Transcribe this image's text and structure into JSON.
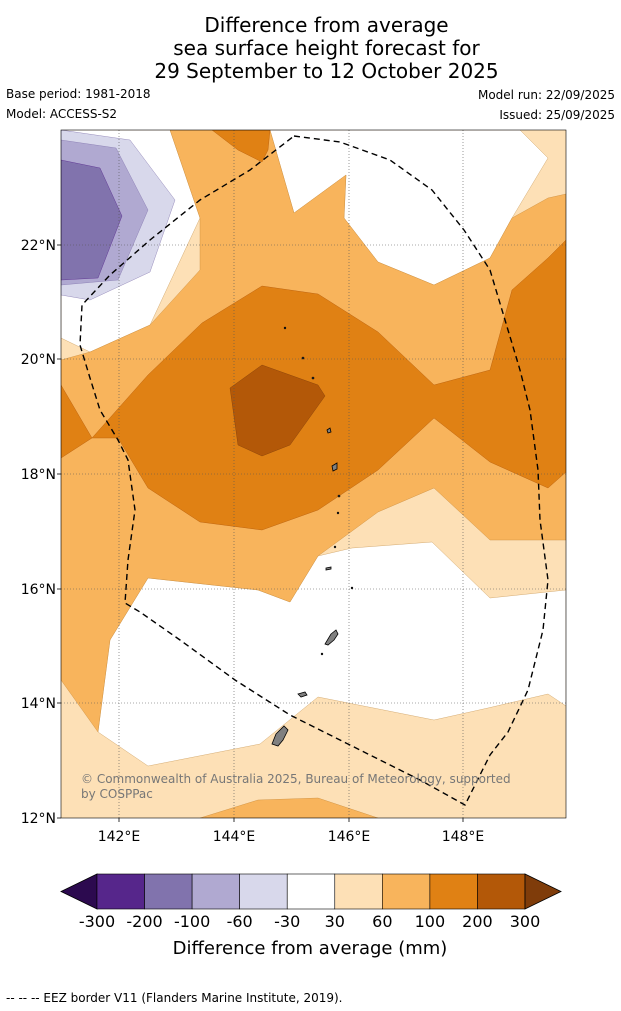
{
  "title": {
    "line1": "Difference from average",
    "line2": "sea surface height forecast for",
    "line3": "29 September to 12 October 2025"
  },
  "meta": {
    "base_period": "Base period: 1981-2018",
    "model": "Model: ACCESS-S2",
    "model_run": "Model run: 22/09/2025",
    "issued": "Issued: 25/09/2025"
  },
  "map": {
    "lon_range": [
      141,
      149.8
    ],
    "lat_range": [
      12,
      24
    ],
    "lon_ticks": [
      "142°E",
      "144°E",
      "146°E",
      "148°E"
    ],
    "lat_ticks": [
      "12°N",
      "14°N",
      "16°N",
      "18°N",
      "20°N",
      "22°N"
    ],
    "features": [
      "sea surface height anomaly contours",
      "EEZ border (dashed)",
      "islands"
    ]
  },
  "colorbar": {
    "boundaries": [
      "-300",
      "-200",
      "-100",
      "-60",
      "-30",
      "30",
      "60",
      "100",
      "200",
      "300"
    ],
    "colors": [
      "#2c0a4f",
      "#56268b",
      "#8173ad",
      "#b0a9d1",
      "#d8d8eb",
      "#ffffff",
      "#fde0b6",
      "#f8b45c",
      "#e08114",
      "#b35808",
      "#7f3c0a"
    ],
    "title": "Difference from average (mm)"
  },
  "copyright": "© Commonwealth of Australia 2025, Bureau of Meteorology, supported by COSPPac",
  "legend_note": "--  --  -- EEZ border V11 (Flanders Marine Institute, 2019)."
}
